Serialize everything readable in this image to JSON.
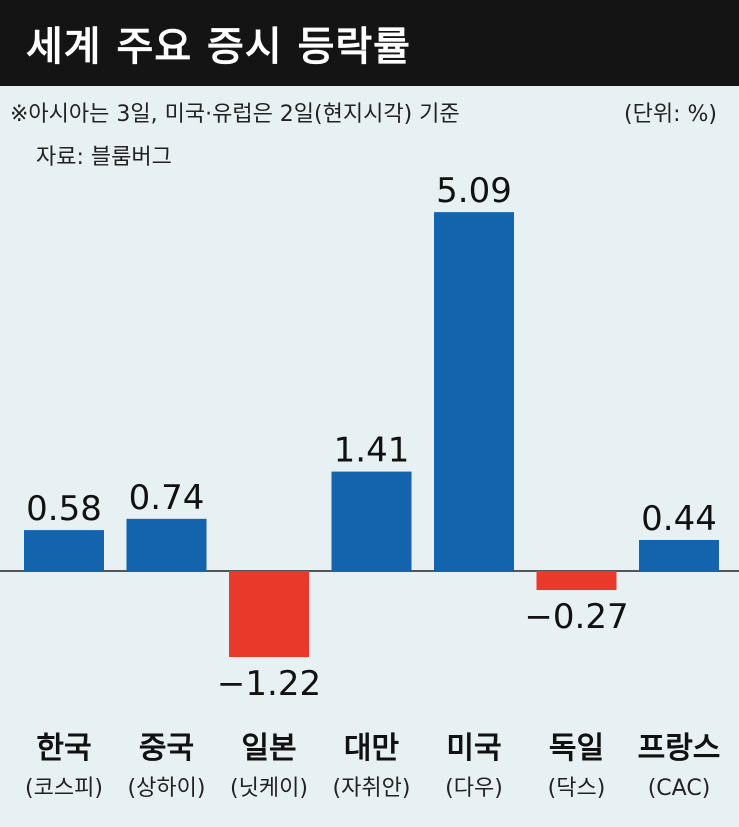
{
  "title": "세계 주요 증시 등락률",
  "note": "※아시아는 3일, 미국·유럽은 2일(현지시각) 기준",
  "unit": "(단위: %)",
  "source": "자료: 블룸버그",
  "chart_data": {
    "type": "bar",
    "categories": [
      {
        "name": "한국",
        "sub": "(코스피)"
      },
      {
        "name": "중국",
        "sub": "(상하이)"
      },
      {
        "name": "일본",
        "sub": "(닛케이)"
      },
      {
        "name": "대만",
        "sub": "(자취안)"
      },
      {
        "name": "미국",
        "sub": "(다우)"
      },
      {
        "name": "독일",
        "sub": "(닥스)"
      },
      {
        "name": "프랑스",
        "sub": "(CAC)"
      }
    ],
    "values": [
      0.58,
      0.74,
      -1.22,
      1.41,
      5.09,
      -0.27,
      0.44
    ],
    "value_labels": [
      "0.58",
      "0.74",
      "−1.22",
      "1.41",
      "5.09",
      "−0.27",
      "0.44"
    ],
    "colors": {
      "positive": "#1463ad",
      "negative": "#e8392a"
    }
  }
}
